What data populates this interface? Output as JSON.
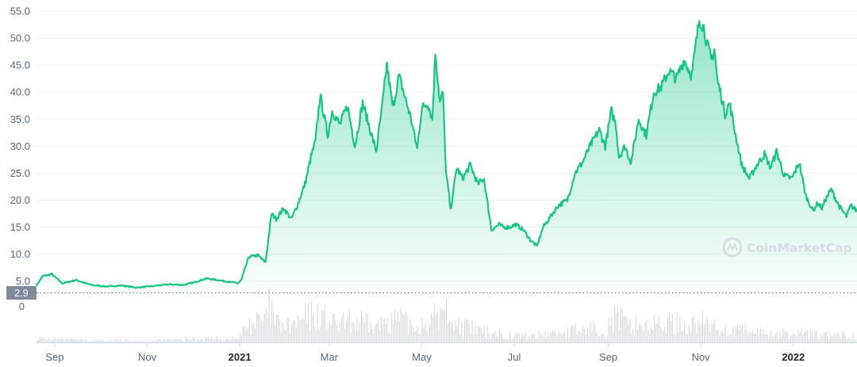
{
  "watermark": {
    "text": "CoinMarketCap"
  },
  "current_price_label": "2.9",
  "colors": {
    "line": "#16c784",
    "fill": "#16c784",
    "grid": "#eff2f5",
    "volume": "#d5d9e0",
    "tick": "#58667e",
    "badge": "#808a9d"
  },
  "chart_data": [
    {
      "type": "area",
      "title": "",
      "xlabel": "",
      "ylabel": "",
      "ylim": [
        2.9,
        55
      ],
      "y_ticks": [
        "5.0",
        "10.0",
        "15.0",
        "20.0",
        "25.0",
        "30.0",
        "35.0",
        "40.0",
        "45.0",
        "50.0",
        "55.0"
      ],
      "x_ticks": [
        "Sep",
        "Nov",
        "2021",
        "Mar",
        "May",
        "Jul",
        "Sep",
        "Nov",
        "2022"
      ],
      "x_ticks_bold": [
        "2021",
        "2022"
      ],
      "x_range": [
        "2020-08-20",
        "2022-02-12"
      ],
      "grid": true,
      "series": [
        {
          "x": [
            "2020-08-20",
            "2020-08-24",
            "2020-08-30",
            "2020-09-06",
            "2020-09-15",
            "2020-09-25",
            "2020-10-05",
            "2020-10-15",
            "2020-10-25",
            "2020-11-05",
            "2020-11-15",
            "2020-11-25",
            "2020-12-01",
            "2020-12-10",
            "2020-12-20",
            "2020-12-31",
            "2021-01-02",
            "2021-01-07",
            "2021-01-13",
            "2021-01-18",
            "2021-01-20",
            "2021-01-22",
            "2021-01-25",
            "2021-01-30",
            "2021-02-04",
            "2021-02-08",
            "2021-02-13",
            "2021-02-17",
            "2021-02-20",
            "2021-02-23",
            "2021-02-28",
            "2021-03-03",
            "2021-03-08",
            "2021-03-13",
            "2021-03-18",
            "2021-03-23",
            "2021-03-28",
            "2021-04-01",
            "2021-04-05",
            "2021-04-08",
            "2021-04-12",
            "2021-04-16",
            "2021-04-20",
            "2021-04-24",
            "2021-04-28",
            "2021-05-01",
            "2021-05-05",
            "2021-05-08",
            "2021-05-10",
            "2021-05-13",
            "2021-05-15",
            "2021-05-17",
            "2021-05-19",
            "2021-05-20",
            "2021-05-24",
            "2021-05-28",
            "2021-06-02",
            "2021-06-07",
            "2021-06-11",
            "2021-06-16",
            "2021-06-21",
            "2021-06-24",
            "2021-06-28",
            "2021-07-02",
            "2021-07-07",
            "2021-07-12",
            "2021-07-16",
            "2021-07-20",
            "2021-07-25",
            "2021-07-30",
            "2021-08-05",
            "2021-08-10",
            "2021-08-15",
            "2021-08-20",
            "2021-08-26",
            "2021-08-30",
            "2021-09-03",
            "2021-09-06",
            "2021-09-08",
            "2021-09-12",
            "2021-09-16",
            "2021-09-21",
            "2021-09-26",
            "2021-10-01",
            "2021-10-06",
            "2021-10-11",
            "2021-10-16",
            "2021-10-21",
            "2021-10-26",
            "2021-10-31",
            "2021-11-03",
            "2021-11-05",
            "2021-11-08",
            "2021-11-10",
            "2021-11-12",
            "2021-11-14",
            "2021-11-17",
            "2021-11-20",
            "2021-11-24",
            "2021-11-28",
            "2021-12-03",
            "2021-12-08",
            "2021-12-13",
            "2021-12-17",
            "2021-12-21",
            "2021-12-26",
            "2021-12-31",
            "2022-01-05",
            "2022-01-09",
            "2022-01-14",
            "2022-01-17",
            "2022-01-20",
            "2022-01-22",
            "2022-01-26",
            "2022-01-31",
            "2022-02-05",
            "2022-02-08",
            "2022-02-12"
          ],
          "values": [
            4.2,
            5.9,
            6.3,
            4.6,
            5.2,
            4.3,
            4.0,
            4.2,
            3.8,
            4.1,
            4.4,
            4.3,
            4.7,
            5.5,
            5.1,
            4.6,
            5.2,
            9.5,
            9.8,
            8.5,
            13.0,
            17.5,
            16.5,
            18.5,
            16.5,
            19.0,
            23.0,
            28.0,
            31.0,
            39.5,
            32.0,
            36.5,
            34.0,
            37.5,
            30.0,
            38.0,
            33.0,
            29.0,
            37.5,
            45.0,
            37.0,
            43.0,
            39.0,
            35.0,
            29.5,
            37.0,
            38.0,
            35.0,
            47.5,
            38.0,
            40.0,
            25.0,
            21.0,
            18.0,
            26.0,
            24.0,
            26.5,
            23.0,
            24.0,
            14.5,
            15.5,
            15.0,
            15.0,
            15.5,
            14.5,
            12.5,
            11.5,
            15.0,
            17.0,
            19.0,
            20.0,
            25.0,
            27.0,
            30.0,
            33.0,
            30.0,
            36.5,
            34.0,
            28.0,
            30.0,
            27.0,
            35.0,
            32.0,
            40.0,
            41.0,
            44.0,
            42.5,
            46.0,
            43.0,
            53.5,
            52.0,
            49.0,
            46.0,
            48.0,
            42.0,
            40.0,
            36.0,
            38.0,
            32.0,
            26.5,
            24.0,
            26.5,
            28.5,
            26.0,
            29.0,
            24.5,
            24.0,
            27.0,
            21.0,
            18.0,
            19.5,
            18.5,
            20.0,
            22.0,
            19.0,
            17.0,
            19.0,
            18.0
          ],
          "volume": [
            0.12,
            0.1,
            0.1,
            0.08,
            0.07,
            0.06,
            0.06,
            0.05,
            0.05,
            0.06,
            0.07,
            0.08,
            0.1,
            0.12,
            0.1,
            0.12,
            0.25,
            0.55,
            0.6,
            0.65,
            1.0,
            0.8,
            0.55,
            0.45,
            0.5,
            0.55,
            0.7,
            0.75,
            0.75,
            0.8,
            0.65,
            0.55,
            0.5,
            0.6,
            0.55,
            0.6,
            0.45,
            0.45,
            0.55,
            0.8,
            0.6,
            0.7,
            0.55,
            0.5,
            0.45,
            0.55,
            0.6,
            0.55,
            0.95,
            0.75,
            0.9,
            0.85,
            1.0,
            0.7,
            0.5,
            0.45,
            0.4,
            0.35,
            0.3,
            0.3,
            0.25,
            0.22,
            0.2,
            0.2,
            0.18,
            0.2,
            0.2,
            0.25,
            0.25,
            0.3,
            0.3,
            0.35,
            0.35,
            0.4,
            0.45,
            0.4,
            0.65,
            0.7,
            0.75,
            0.5,
            0.45,
            0.55,
            0.5,
            0.5,
            0.55,
            0.55,
            0.55,
            0.5,
            0.5,
            0.6,
            0.55,
            0.5,
            0.5,
            0.45,
            0.4,
            0.45,
            0.4,
            0.35,
            0.3,
            0.35,
            0.3,
            0.3,
            0.28,
            0.25,
            0.25,
            0.25,
            0.22,
            0.3,
            0.28,
            0.25,
            0.25,
            0.2,
            0.2,
            0.2,
            0.2,
            0.18,
            0.18,
            0.18
          ]
        }
      ]
    }
  ]
}
